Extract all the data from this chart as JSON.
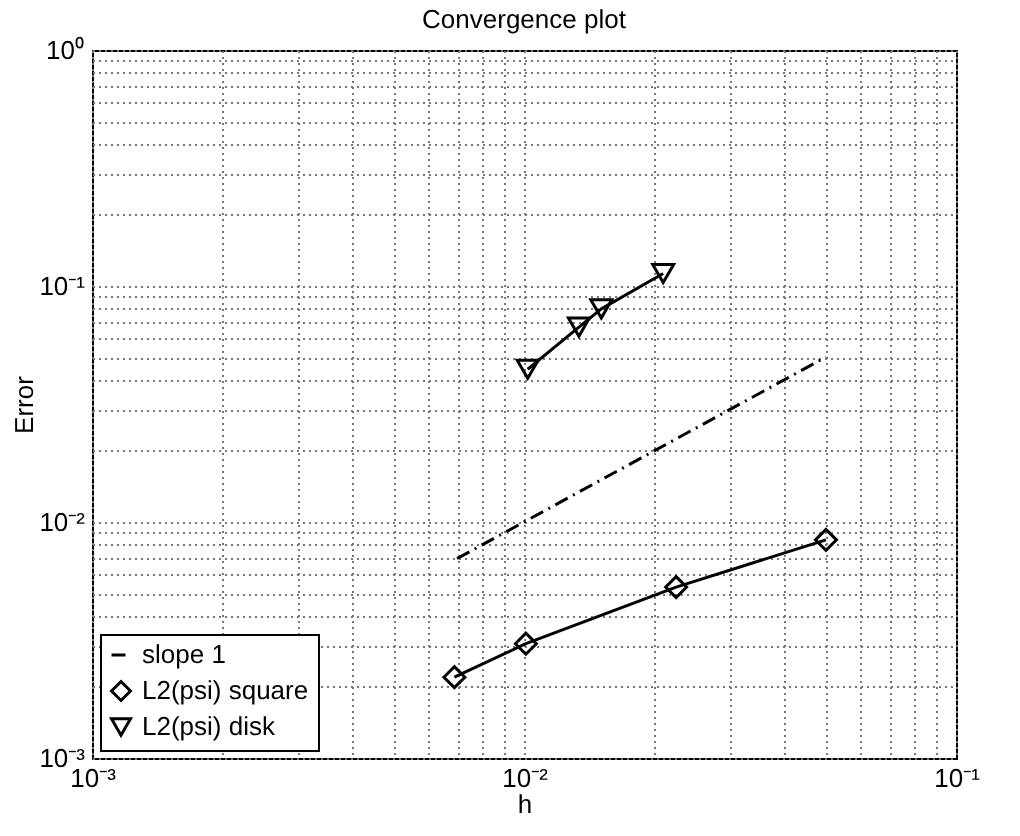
{
  "chart_data": {
    "type": "line",
    "title": "Convergence plot",
    "xlabel": "h",
    "ylabel": "Error",
    "series": [
      {
        "name": "slope 1",
        "color": "#000000",
        "line_style": "dashdot",
        "marker": "none",
        "x": [
          0.007,
          0.05
        ],
        "values": [
          0.007,
          0.05
        ]
      },
      {
        "name": "L2(psi) square",
        "color": "#010101",
        "line_style": "solid",
        "marker": "diamond",
        "x": [
          0.0069,
          0.0101,
          0.0225,
          0.05
        ],
        "values": [
          0.0022,
          0.00305,
          0.0053,
          0.0084
        ]
      },
      {
        "name": "L2(psi) disk",
        "color": "#020202",
        "line_style": "solid",
        "marker": "triangle-down",
        "x": [
          0.0102,
          0.0134,
          0.0151,
          0.021
        ],
        "values": [
          0.0444,
          0.067,
          0.08,
          0.113
        ]
      }
    ],
    "log": "xy",
    "xlim": [
      0.001,
      0.1
    ],
    "ylim": [
      0.001,
      1
    ],
    "xticks": [
      {
        "value": 0.001,
        "label": "10⁻³"
      },
      {
        "value": 0.002,
        "label": null
      },
      {
        "value": 0.003,
        "label": null
      },
      {
        "value": 0.004,
        "label": null
      },
      {
        "value": 0.005,
        "label": null
      },
      {
        "value": 0.006,
        "label": null
      },
      {
        "value": 0.007,
        "label": null
      },
      {
        "value": 0.008,
        "label": null
      },
      {
        "value": 0.009,
        "label": null
      },
      {
        "value": 0.01,
        "label": "10⁻²"
      },
      {
        "value": 0.02,
        "label": null
      },
      {
        "value": 0.03,
        "label": null
      },
      {
        "value": 0.04,
        "label": null
      },
      {
        "value": 0.05,
        "label": null
      },
      {
        "value": 0.06,
        "label": null
      },
      {
        "value": 0.07,
        "label": null
      },
      {
        "value": 0.08,
        "label": null
      },
      {
        "value": 0.09,
        "label": null
      },
      {
        "value": 0.1,
        "label": "10⁻¹"
      }
    ],
    "yticks": [
      {
        "value": 0.001,
        "label": "10⁻³"
      },
      {
        "value": 0.002,
        "label": null
      },
      {
        "value": 0.003,
        "label": null
      },
      {
        "value": 0.004,
        "label": null
      },
      {
        "value": 0.005,
        "label": null
      },
      {
        "value": 0.006,
        "label": null
      },
      {
        "value": 0.007,
        "label": null
      },
      {
        "value": 0.008,
        "label": null
      },
      {
        "value": 0.009,
        "label": null
      },
      {
        "value": 0.01,
        "label": "10⁻²"
      },
      {
        "value": 0.02,
        "label": null
      },
      {
        "value": 0.03,
        "label": null
      },
      {
        "value": 0.04,
        "label": null
      },
      {
        "value": 0.05,
        "label": null
      },
      {
        "value": 0.06,
        "label": null
      },
      {
        "value": 0.07,
        "label": null
      },
      {
        "value": 0.08,
        "label": null
      },
      {
        "value": 0.09,
        "label": null
      },
      {
        "value": 0.1,
        "label": "10⁻¹"
      },
      {
        "value": 0.2,
        "label": null
      },
      {
        "value": 0.3,
        "label": null
      },
      {
        "value": 0.4,
        "label": null
      },
      {
        "value": 0.5,
        "label": null
      },
      {
        "value": 0.6,
        "label": null
      },
      {
        "value": 0.7,
        "label": null
      },
      {
        "value": 0.8,
        "label": null
      },
      {
        "value": 0.9,
        "label": null
      },
      {
        "value": 1,
        "label": "10⁰"
      }
    ],
    "grid": true,
    "legend": "bottom left"
  }
}
